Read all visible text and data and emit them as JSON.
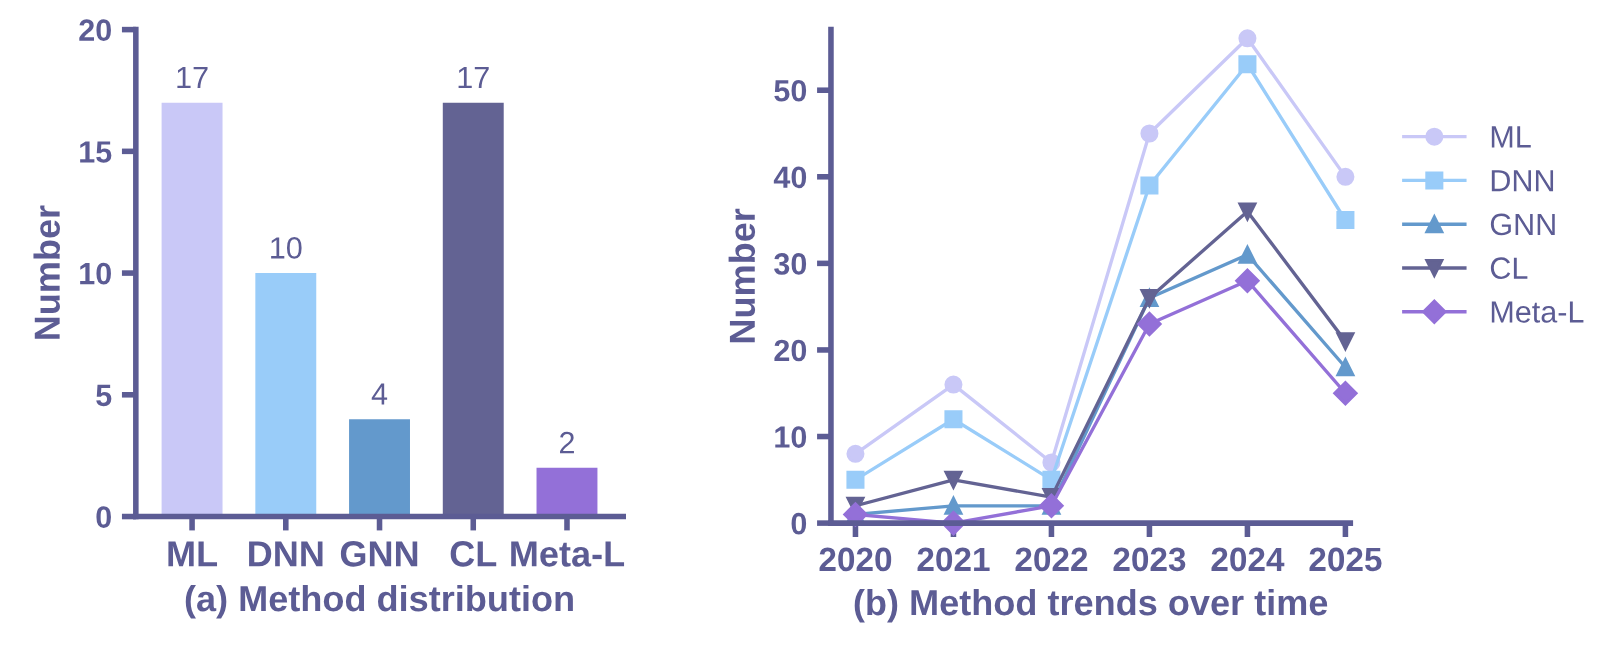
{
  "chart_data": [
    {
      "type": "bar",
      "xlabel": "(a) Method distribution",
      "ylabel": "Number",
      "categories": [
        "ML",
        "DNN",
        "GNN",
        "CL",
        "Meta-L"
      ],
      "values": [
        17,
        10,
        4,
        17,
        2
      ],
      "colors": [
        "#c9c8f7",
        "#99ccf9",
        "#6399cc",
        "#636393",
        "#9370d8"
      ],
      "ylim": [
        0,
        20
      ],
      "yticks": [
        0,
        5,
        10,
        15,
        20
      ],
      "data_labels": true,
      "grid": false
    },
    {
      "type": "line",
      "xlabel": "(b) Method trends over time",
      "ylabel": "Number",
      "categories": [
        "2020",
        "2021",
        "2022",
        "2023",
        "2024",
        "2025"
      ],
      "ylim": [
        0,
        57
      ],
      "yticks": [
        0,
        10,
        20,
        30,
        40,
        50
      ],
      "grid": false,
      "legend": "right",
      "series": [
        {
          "name": "ML",
          "color": "#c9c8f7",
          "marker": "circle",
          "values": [
            8,
            16,
            7,
            45,
            56,
            40
          ]
        },
        {
          "name": "DNN",
          "color": "#99ccf9",
          "marker": "square",
          "values": [
            5,
            12,
            5,
            39,
            53,
            35
          ]
        },
        {
          "name": "GNN",
          "color": "#6399cc",
          "marker": "triangle",
          "values": [
            1,
            2,
            2,
            26,
            31,
            18
          ]
        },
        {
          "name": "CL",
          "color": "#636393",
          "marker": "triangle_down",
          "values": [
            2,
            5,
            3,
            26,
            36,
            21
          ]
        },
        {
          "name": "Meta-L",
          "color": "#9370d8",
          "marker": "diamond",
          "values": [
            1,
            0,
            2,
            23,
            28,
            15
          ]
        }
      ]
    }
  ]
}
